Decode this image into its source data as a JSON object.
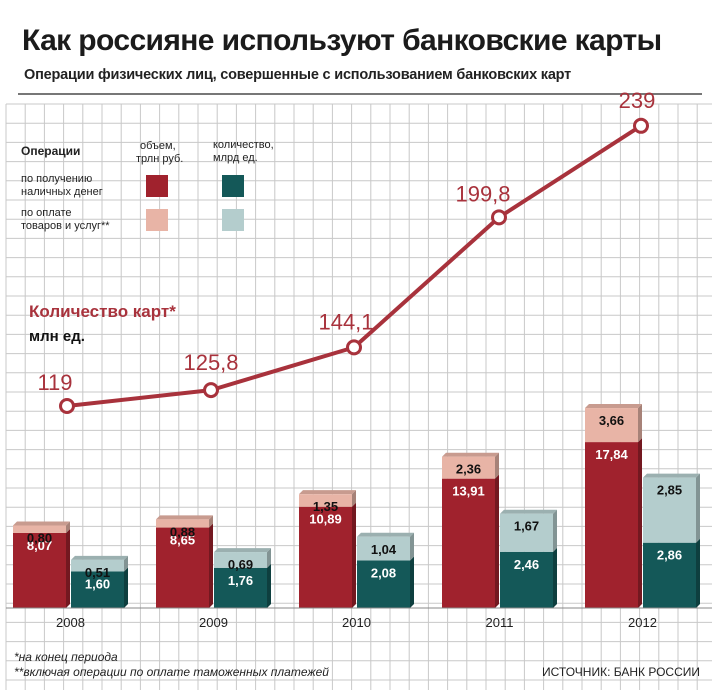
{
  "title": "Как россияне используют банковские карты",
  "subtitle": "Операции физических лиц, совершенные с использованием банковских карт",
  "legend": {
    "header": "Операции",
    "col_volume": [
      "объем,",
      "трлн руб."
    ],
    "col_count": [
      "количество,",
      "млрд ед."
    ],
    "row_cash": [
      "по получению",
      "наличных денег"
    ],
    "row_goods": [
      "по оплате",
      "товаров и услуг**"
    ]
  },
  "cards_label": "Количество карт*",
  "cards_unit": "млн ед.",
  "footnotes": [
    "*на конец периода",
    "**включая операции по оплате таможенных платежей"
  ],
  "source": "ИСТОЧНИК: БАНК РОССИИ",
  "colors": {
    "cash_volume": "#a0222d",
    "goods_volume": "#e8b4a6",
    "cash_count": "#145858",
    "goods_count": "#b4cdcd",
    "line": "#a8323c",
    "grid": "#c8c8c8"
  },
  "chart_data": {
    "type": "bar",
    "stacked": true,
    "categories": [
      "2008",
      "2009",
      "2010",
      "2011",
      "2012"
    ],
    "series": [
      {
        "name": "объем, трлн руб. — по получению наличных денег",
        "stack": "volume",
        "values": [
          8.07,
          8.65,
          10.89,
          13.91,
          17.84
        ],
        "labels": [
          "8,07",
          "8,65",
          "10,89",
          "13,91",
          "17,84"
        ]
      },
      {
        "name": "объем, трлн руб. — по оплате товаров и услуг",
        "stack": "volume",
        "values": [
          0.8,
          0.88,
          1.35,
          2.36,
          3.66
        ],
        "labels": [
          "0,80",
          "0,88",
          "1,35",
          "2,36",
          "3,66"
        ]
      },
      {
        "name": "количество, млрд ед. — по получению наличных денег",
        "stack": "count",
        "values": [
          1.6,
          1.76,
          2.08,
          2.46,
          2.86
        ],
        "labels": [
          "1,60",
          "1,76",
          "2,08",
          "2,46",
          "2,86"
        ]
      },
      {
        "name": "количество, млрд ед. — по оплате товаров и услуг",
        "stack": "count",
        "values": [
          0.51,
          0.69,
          1.04,
          1.67,
          2.85
        ],
        "labels": [
          "0,51",
          "0,69",
          "1,04",
          "1,67",
          "2,85"
        ]
      }
    ],
    "line": {
      "name": "Количество карт*",
      "unit": "млн ед.",
      "values": [
        119,
        125.8,
        144.1,
        199.8,
        239
      ],
      "labels": [
        "119",
        "125,8",
        "144,1",
        "199,8",
        "239"
      ]
    },
    "grid": true,
    "legend_position": "top-left"
  }
}
